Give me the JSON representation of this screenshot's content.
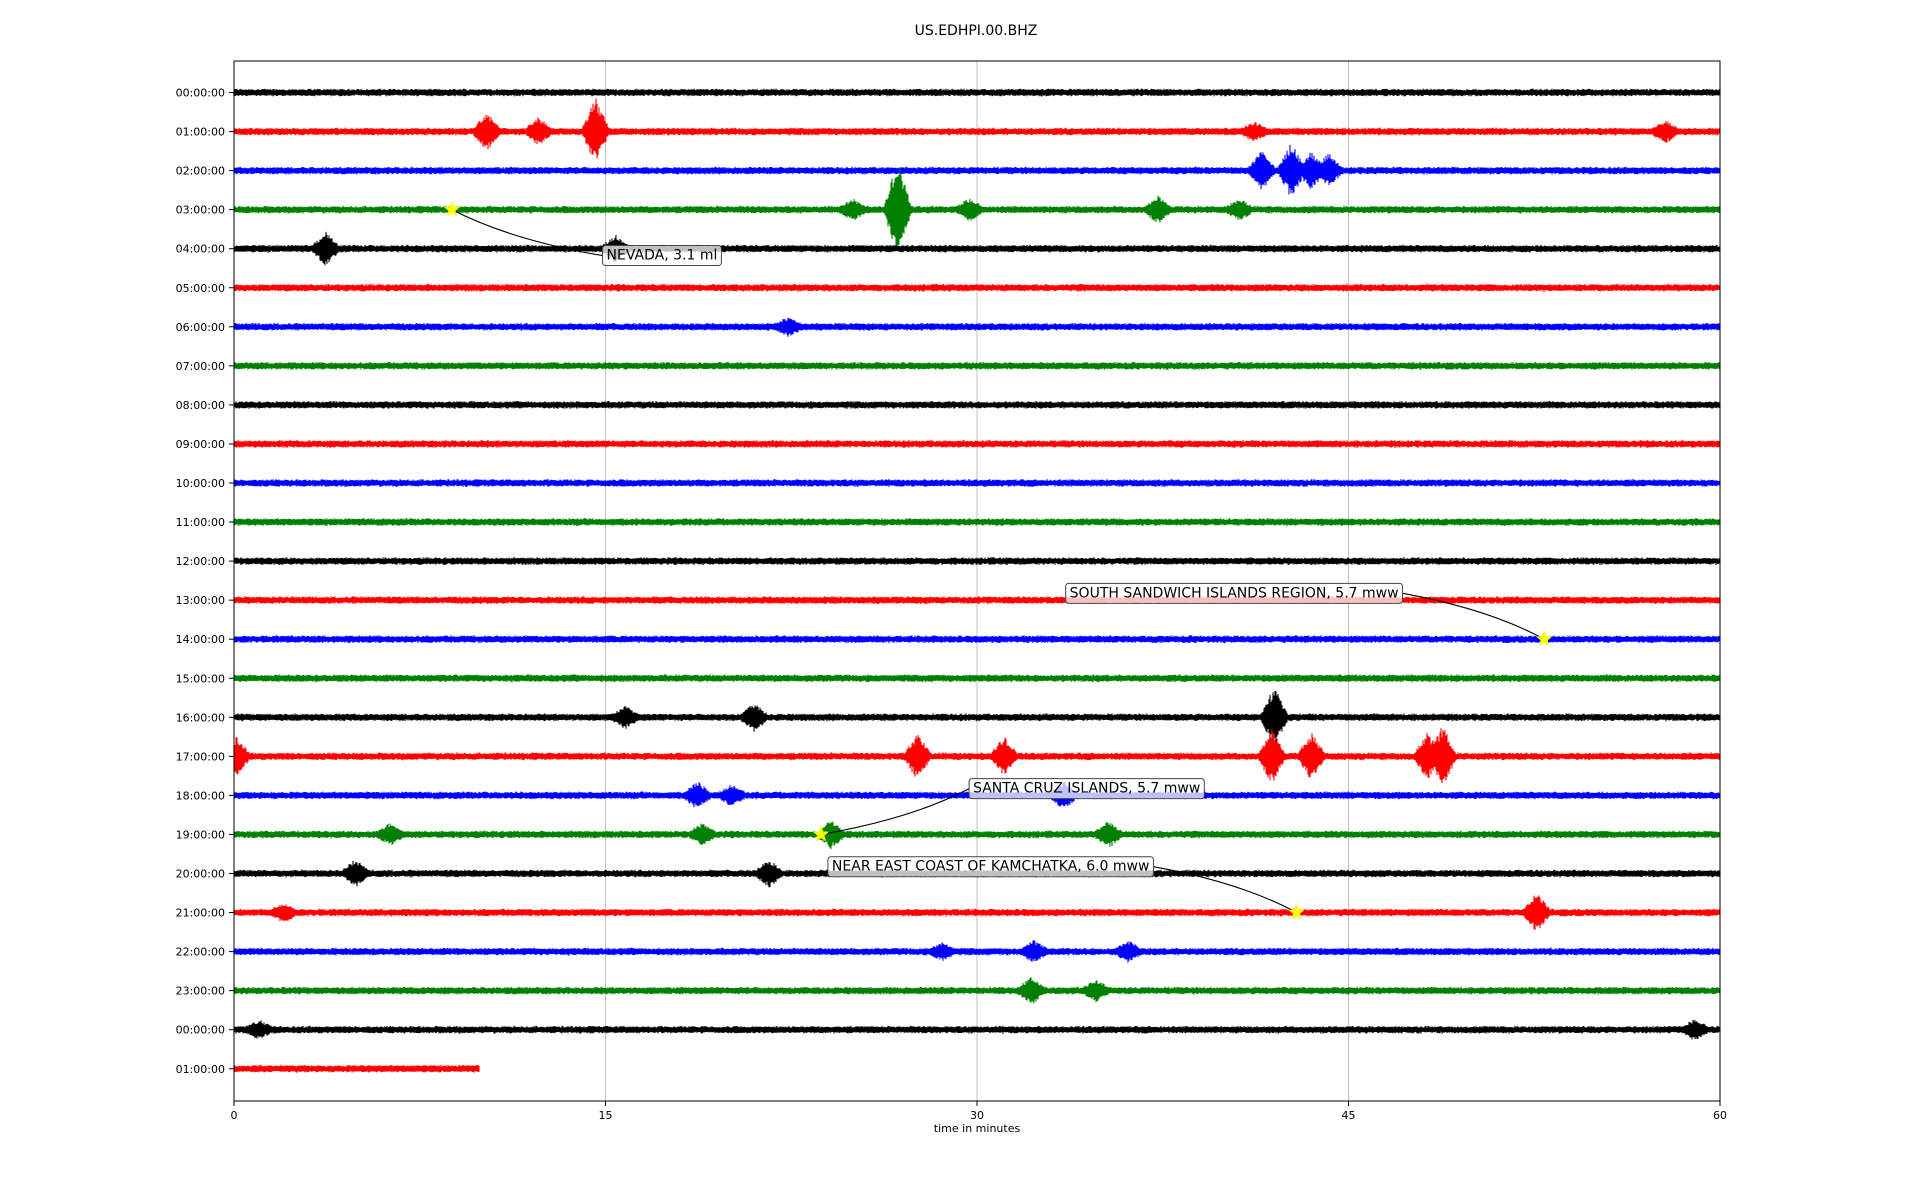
{
  "chart_data": {
    "type": "line",
    "title": "US.EDHPI.00.BHZ",
    "xlabel": "time in minutes",
    "ylabel": "",
    "xlim": [
      0,
      60
    ],
    "x_ticks": [
      "0",
      "15",
      "30",
      "45",
      "60"
    ],
    "grid": "vertical lines at x ticks",
    "colors": [
      "#000000",
      "#ff0000",
      "#0000ff",
      "#008000"
    ],
    "rows": [
      {
        "label": "00:00:00",
        "end_minute": 60
      },
      {
        "label": "01:00:00",
        "end_minute": 60
      },
      {
        "label": "02:00:00",
        "end_minute": 60
      },
      {
        "label": "03:00:00",
        "end_minute": 60
      },
      {
        "label": "04:00:00",
        "end_minute": 60
      },
      {
        "label": "05:00:00",
        "end_minute": 60
      },
      {
        "label": "06:00:00",
        "end_minute": 60
      },
      {
        "label": "07:00:00",
        "end_minute": 60
      },
      {
        "label": "08:00:00",
        "end_minute": 60
      },
      {
        "label": "09:00:00",
        "end_minute": 60
      },
      {
        "label": "10:00:00",
        "end_minute": 60
      },
      {
        "label": "11:00:00",
        "end_minute": 60
      },
      {
        "label": "12:00:00",
        "end_minute": 60
      },
      {
        "label": "13:00:00",
        "end_minute": 60
      },
      {
        "label": "14:00:00",
        "end_minute": 60
      },
      {
        "label": "15:00:00",
        "end_minute": 60
      },
      {
        "label": "16:00:00",
        "end_minute": 60
      },
      {
        "label": "17:00:00",
        "end_minute": 60
      },
      {
        "label": "18:00:00",
        "end_minute": 60
      },
      {
        "label": "19:00:00",
        "end_minute": 60
      },
      {
        "label": "20:00:00",
        "end_minute": 60
      },
      {
        "label": "21:00:00",
        "end_minute": 60
      },
      {
        "label": "22:00:00",
        "end_minute": 60
      },
      {
        "label": "23:00:00",
        "end_minute": 60
      },
      {
        "label": "00:00:00",
        "end_minute": 60
      },
      {
        "label": "01:00:00",
        "end_minute": 9.9
      }
    ],
    "bursts": [
      {
        "row": 1,
        "minute": 10.2,
        "amp": 1.2
      },
      {
        "row": 1,
        "minute": 12.3,
        "amp": 0.8
      },
      {
        "row": 1,
        "minute": 14.6,
        "amp": 2.2
      },
      {
        "row": 1,
        "minute": 41.2,
        "amp": 0.5
      },
      {
        "row": 1,
        "minute": 57.8,
        "amp": 0.6
      },
      {
        "row": 2,
        "minute": 41.5,
        "amp": 1.2
      },
      {
        "row": 2,
        "minute": 42.7,
        "amp": 1.8
      },
      {
        "row": 2,
        "minute": 43.5,
        "amp": 1.2
      },
      {
        "row": 2,
        "minute": 44.2,
        "amp": 1.0
      },
      {
        "row": 3,
        "minute": 26.8,
        "amp": 3.5
      },
      {
        "row": 3,
        "minute": 25.0,
        "amp": 0.6
      },
      {
        "row": 3,
        "minute": 29.7,
        "amp": 0.6
      },
      {
        "row": 3,
        "minute": 37.3,
        "amp": 0.8
      },
      {
        "row": 3,
        "minute": 40.6,
        "amp": 0.6
      },
      {
        "row": 4,
        "minute": 3.7,
        "amp": 1.0
      },
      {
        "row": 4,
        "minute": 15.4,
        "amp": 0.8
      },
      {
        "row": 6,
        "minute": 22.4,
        "amp": 0.5
      },
      {
        "row": 16,
        "minute": 15.8,
        "amp": 0.6
      },
      {
        "row": 16,
        "minute": 21.0,
        "amp": 0.8
      },
      {
        "row": 16,
        "minute": 42.0,
        "amp": 2.0
      },
      {
        "row": 17,
        "minute": 0.1,
        "amp": 1.2
      },
      {
        "row": 17,
        "minute": 27.6,
        "amp": 1.5
      },
      {
        "row": 17,
        "minute": 31.1,
        "amp": 1.2
      },
      {
        "row": 17,
        "minute": 41.9,
        "amp": 1.8
      },
      {
        "row": 17,
        "minute": 43.5,
        "amp": 1.5
      },
      {
        "row": 17,
        "minute": 48.2,
        "amp": 1.5
      },
      {
        "row": 17,
        "minute": 48.8,
        "amp": 2.0
      },
      {
        "row": 18,
        "minute": 18.7,
        "amp": 0.8
      },
      {
        "row": 18,
        "minute": 20.1,
        "amp": 0.6
      },
      {
        "row": 18,
        "minute": 33.5,
        "amp": 0.8
      },
      {
        "row": 19,
        "minute": 6.3,
        "amp": 0.6
      },
      {
        "row": 19,
        "minute": 18.9,
        "amp": 0.6
      },
      {
        "row": 19,
        "minute": 24.1,
        "amp": 0.8
      },
      {
        "row": 19,
        "minute": 35.3,
        "amp": 0.8
      },
      {
        "row": 20,
        "minute": 4.9,
        "amp": 0.8
      },
      {
        "row": 20,
        "minute": 21.6,
        "amp": 0.8
      },
      {
        "row": 21,
        "minute": 2.0,
        "amp": 0.5
      },
      {
        "row": 21,
        "minute": 52.6,
        "amp": 1.2
      },
      {
        "row": 22,
        "minute": 28.6,
        "amp": 0.5
      },
      {
        "row": 22,
        "minute": 32.3,
        "amp": 0.6
      },
      {
        "row": 22,
        "minute": 36.1,
        "amp": 0.6
      },
      {
        "row": 23,
        "minute": 32.2,
        "amp": 0.8
      },
      {
        "row": 23,
        "minute": 34.8,
        "amp": 0.6
      },
      {
        "row": 24,
        "minute": 1.0,
        "amp": 0.5
      },
      {
        "row": 24,
        "minute": 59.0,
        "amp": 0.6
      }
    ],
    "events": [
      {
        "label": "NEVADA, 3.1 ml",
        "row": 3,
        "minute": 8.8,
        "label_row": 4.15,
        "label_minute": 14.8,
        "label_align": "left"
      },
      {
        "label": "SOUTH SANDWICH ISLANDS REGION, 5.7 mww",
        "row": 14,
        "minute": 52.9,
        "label_row": 12.8,
        "label_minute": 33.5,
        "label_align": "left"
      },
      {
        "label": "SANTA CRUZ ISLANDS, 5.7 mww",
        "row": 19,
        "minute": 23.7,
        "label_row": 17.8,
        "label_minute": 29.6,
        "label_align": "left"
      },
      {
        "label": "NEAR EAST COAST OF KAMCHATKA, 6.0 mww",
        "row": 21,
        "minute": 42.9,
        "label_row": 19.8,
        "label_minute": 23.9,
        "label_align": "left"
      }
    ]
  }
}
